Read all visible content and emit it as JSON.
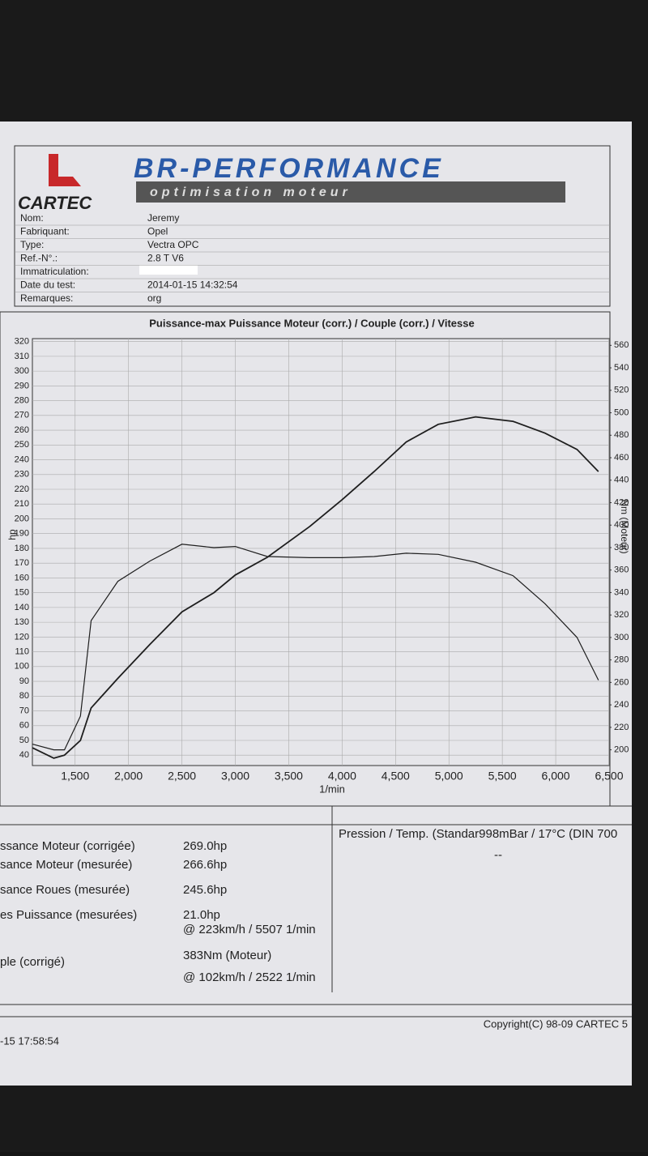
{
  "header": {
    "logo": "CARTEC",
    "brand": "BR-PERFORMANCE",
    "tagline": "optimisation moteur"
  },
  "info": [
    {
      "label": "Nom:",
      "value": "Jeremy"
    },
    {
      "label": "Fabriquant:",
      "value": "Opel"
    },
    {
      "label": "Type:",
      "value": "Vectra OPC"
    },
    {
      "label": "Ref.-N°.:",
      "value": "2.8 T V6"
    },
    {
      "label": "Immatriculation:"
    },
    {
      "label": "Date du test:",
      "value": "2014-01-15 14:32:54"
    },
    {
      "label": "Remarques:",
      "value": "org"
    }
  ],
  "chart_data": {
    "type": "line",
    "title": "Puissance-max Puissance Moteur (corr.) / Couple (corr.) / Vitesse",
    "x_label": "1/min",
    "y_label": "hp",
    "y2_label": "Nm (Moteur)",
    "x": [
      1100,
      1300,
      1400,
      1550,
      1650,
      1900,
      2200,
      2500,
      2800,
      3000,
      3300,
      3700,
      4000,
      4300,
      4600,
      4900,
      5250,
      5600,
      5900,
      6200,
      6400
    ],
    "series": [
      {
        "color": "#1e1e1e",
        "values": [
          45,
          38,
          40,
          50,
          72,
          92,
          115,
          137,
          150,
          162,
          174,
          195,
          213,
          232,
          252,
          264,
          269,
          266,
          258,
          247,
          232
        ]
      },
      {
        "color": "#1e1e1e",
        "axis": "y2",
        "values": [
          205,
          200,
          200,
          230,
          315,
          350,
          368,
          383,
          380,
          381,
          372,
          371,
          371,
          372,
          375,
          374,
          367,
          355,
          330,
          300,
          262
        ]
      }
    ],
    "xlim": [
      1100,
      6500
    ],
    "xticks": [
      {
        "value": 1500,
        "label": "1,500"
      },
      {
        "value": 2000,
        "label": "2,000"
      },
      {
        "value": 2500,
        "label": "2,500"
      },
      {
        "value": 3000,
        "label": "3,000"
      },
      {
        "value": 3500,
        "label": "3,500"
      },
      {
        "value": 4000,
        "label": "4,000"
      },
      {
        "value": 4500,
        "label": "4,500"
      },
      {
        "value": 5000,
        "label": "5,000"
      },
      {
        "value": 5500,
        "label": "5,500"
      },
      {
        "value": 6000,
        "label": "6,000"
      },
      {
        "value": 6500,
        "label": "6,500"
      }
    ],
    "ylim": [
      33,
      322
    ],
    "yticks": [
      40,
      50,
      60,
      70,
      80,
      90,
      100,
      110,
      120,
      130,
      140,
      150,
      160,
      170,
      180,
      190,
      200,
      210,
      220,
      230,
      240,
      250,
      260,
      270,
      280,
      290,
      300,
      310,
      320
    ],
    "y2lim": [
      186,
      566
    ],
    "y2ticks": [
      200,
      220,
      240,
      260,
      280,
      300,
      320,
      340,
      360,
      380,
      400,
      420,
      440,
      460,
      480,
      500,
      520,
      540,
      560
    ],
    "grid": true
  },
  "results": [
    {
      "label": "ssance Moteur (corrigée)",
      "value": "269.0hp"
    },
    {
      "label": "sance Moteur (mesurée)",
      "value": "266.6hp"
    },
    {
      "label": "sance Roues (mesurée)",
      "value": "245.6hp"
    },
    {
      "label": "es Puissance (mesurées)",
      "value": "21.0hp"
    },
    {
      "value": "@ 223km/h / 5507 1/min"
    },
    {
      "label": "ple (corrigé)",
      "value": "383Nm (Moteur)"
    },
    {
      "value": "@ 102km/h / 2522 1/min"
    }
  ],
  "conditions": {
    "text": "Pression / Temp. (Standar998mBar / 17°C   (DIN 700",
    "extra": "--"
  },
  "footer": {
    "copyright": "Copyright(C) 98-09 CARTEC 5",
    "timestamp": "-15 17:58:54"
  }
}
